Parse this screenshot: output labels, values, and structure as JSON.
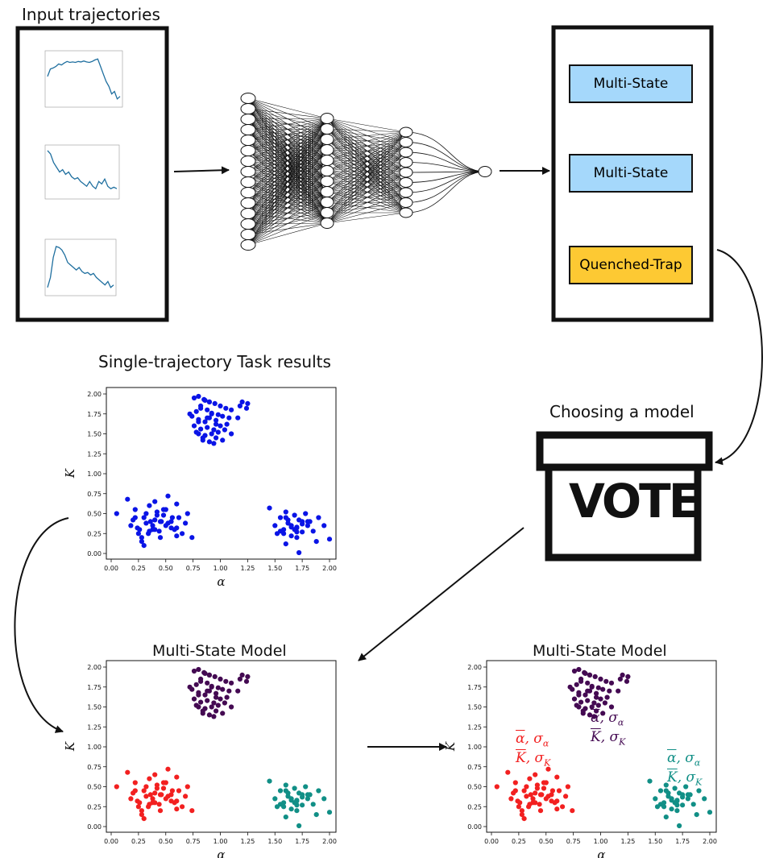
{
  "titles": {
    "input": "Input trajectories",
    "single_task": "Single-trajectory Task  results",
    "choosing": "Choosing a model",
    "ms_left": "Multi-State Model",
    "ms_right": "Multi-State Model",
    "vote": "VOTE"
  },
  "model_boxes": [
    {
      "label": "Multi-State",
      "color": "#a5d8fb"
    },
    {
      "label": "Multi-State",
      "color": "#a5d8fb"
    },
    {
      "label": "Quenched-Trap",
      "color": "#fdc933"
    }
  ],
  "colors": {
    "blue": "#0a14e6",
    "purple": "#440a52",
    "red": "#f22020",
    "teal": "#118f86",
    "trajectory": "#1f6f9f"
  },
  "scatter_axes": {
    "xlabel": "α",
    "ylabel": "K",
    "xticks": [
      "0.00",
      "0.25",
      "0.50",
      "0.75",
      "1.00",
      "1.25",
      "1.50",
      "1.75",
      "2.00"
    ],
    "yticks": [
      "0.00",
      "0.25",
      "0.50",
      "0.75",
      "1.00",
      "1.25",
      "1.50",
      "1.75",
      "2.00"
    ]
  },
  "annotations": {
    "line1": "α, σ",
    "line1_sub": "α",
    "line2": "K, σ",
    "line2_sub": "K"
  },
  "chart_data": {
    "type": "scatter",
    "xlabel": "α",
    "ylabel": "K",
    "xlim": [
      0,
      2
    ],
    "ylim": [
      0,
      2
    ],
    "series": [
      {
        "cluster": "top",
        "x": [
          0.76,
          0.8,
          0.85,
          0.9,
          0.95,
          1.0,
          1.05,
          1.1,
          0.78,
          0.82,
          0.88,
          0.92,
          0.98,
          1.02,
          1.08,
          0.74,
          0.8,
          0.86,
          0.9,
          0.96,
          1.0,
          1.06,
          0.76,
          0.82,
          0.88,
          0.94,
          0.98,
          1.04,
          0.8,
          0.86,
          0.92,
          0.96,
          1.02,
          0.84,
          0.9,
          0.94,
          0.78,
          0.84,
          0.88,
          0.92,
          0.8,
          0.96,
          0.86,
          0.82,
          1.2,
          1.25,
          1.18,
          1.24,
          1.16,
          0.72,
          0.9,
          1.1
        ],
        "y": [
          1.95,
          1.97,
          1.93,
          1.9,
          1.88,
          1.85,
          1.82,
          1.8,
          1.78,
          1.85,
          1.8,
          1.76,
          1.74,
          1.72,
          1.7,
          1.72,
          1.68,
          1.65,
          1.7,
          1.62,
          1.6,
          1.62,
          1.6,
          1.56,
          1.58,
          1.55,
          1.52,
          1.55,
          1.5,
          1.48,
          1.5,
          1.45,
          1.42,
          1.45,
          1.4,
          1.38,
          1.52,
          1.42,
          1.7,
          1.75,
          1.65,
          1.67,
          1.92,
          1.82,
          1.9,
          1.88,
          1.85,
          1.82,
          1.7,
          1.75,
          1.9,
          1.5
        ]
      },
      {
        "cluster": "left",
        "x": [
          0.05,
          0.15,
          0.18,
          0.22,
          0.25,
          0.28,
          0.3,
          0.32,
          0.35,
          0.38,
          0.4,
          0.42,
          0.45,
          0.48,
          0.5,
          0.52,
          0.55,
          0.58,
          0.6,
          0.62,
          0.65,
          0.68,
          0.7,
          0.74,
          0.2,
          0.24,
          0.28,
          0.32,
          0.36,
          0.4,
          0.44,
          0.48,
          0.52,
          0.56,
          0.6,
          0.3,
          0.34,
          0.38,
          0.42,
          0.46,
          0.5,
          0.26,
          0.22,
          0.35,
          0.45,
          0.55,
          0.6,
          0.4
        ],
        "y": [
          0.5,
          0.68,
          0.35,
          0.55,
          0.25,
          0.15,
          0.45,
          0.38,
          0.6,
          0.3,
          0.42,
          0.52,
          0.2,
          0.48,
          0.35,
          0.72,
          0.4,
          0.3,
          0.62,
          0.45,
          0.25,
          0.38,
          0.5,
          0.2,
          0.42,
          0.32,
          0.2,
          0.5,
          0.4,
          0.65,
          0.28,
          0.55,
          0.38,
          0.45,
          0.32,
          0.1,
          0.25,
          0.35,
          0.48,
          0.4,
          0.55,
          0.3,
          0.45,
          0.28,
          0.4,
          0.32,
          0.22,
          0.3
        ]
      },
      {
        "cluster": "right",
        "x": [
          1.45,
          1.5,
          1.52,
          1.55,
          1.58,
          1.6,
          1.62,
          1.65,
          1.68,
          1.7,
          1.72,
          1.75,
          1.78,
          1.8,
          1.82,
          1.85,
          1.88,
          1.9,
          1.95,
          2.0,
          1.55,
          1.6,
          1.65,
          1.7,
          1.75,
          1.6,
          1.65,
          1.7,
          1.72,
          1.68,
          1.62,
          1.58,
          1.75,
          1.8,
          1.7
        ],
        "y": [
          0.57,
          0.35,
          0.25,
          0.45,
          0.3,
          0.52,
          0.38,
          0.22,
          0.48,
          0.32,
          0.42,
          0.27,
          0.5,
          0.35,
          0.4,
          0.28,
          0.15,
          0.45,
          0.35,
          0.18,
          0.28,
          0.45,
          0.33,
          0.27,
          0.4,
          0.12,
          0.35,
          0.2,
          0.01,
          0.3,
          0.42,
          0.25,
          0.37,
          0.4,
          0.33
        ]
      }
    ]
  }
}
